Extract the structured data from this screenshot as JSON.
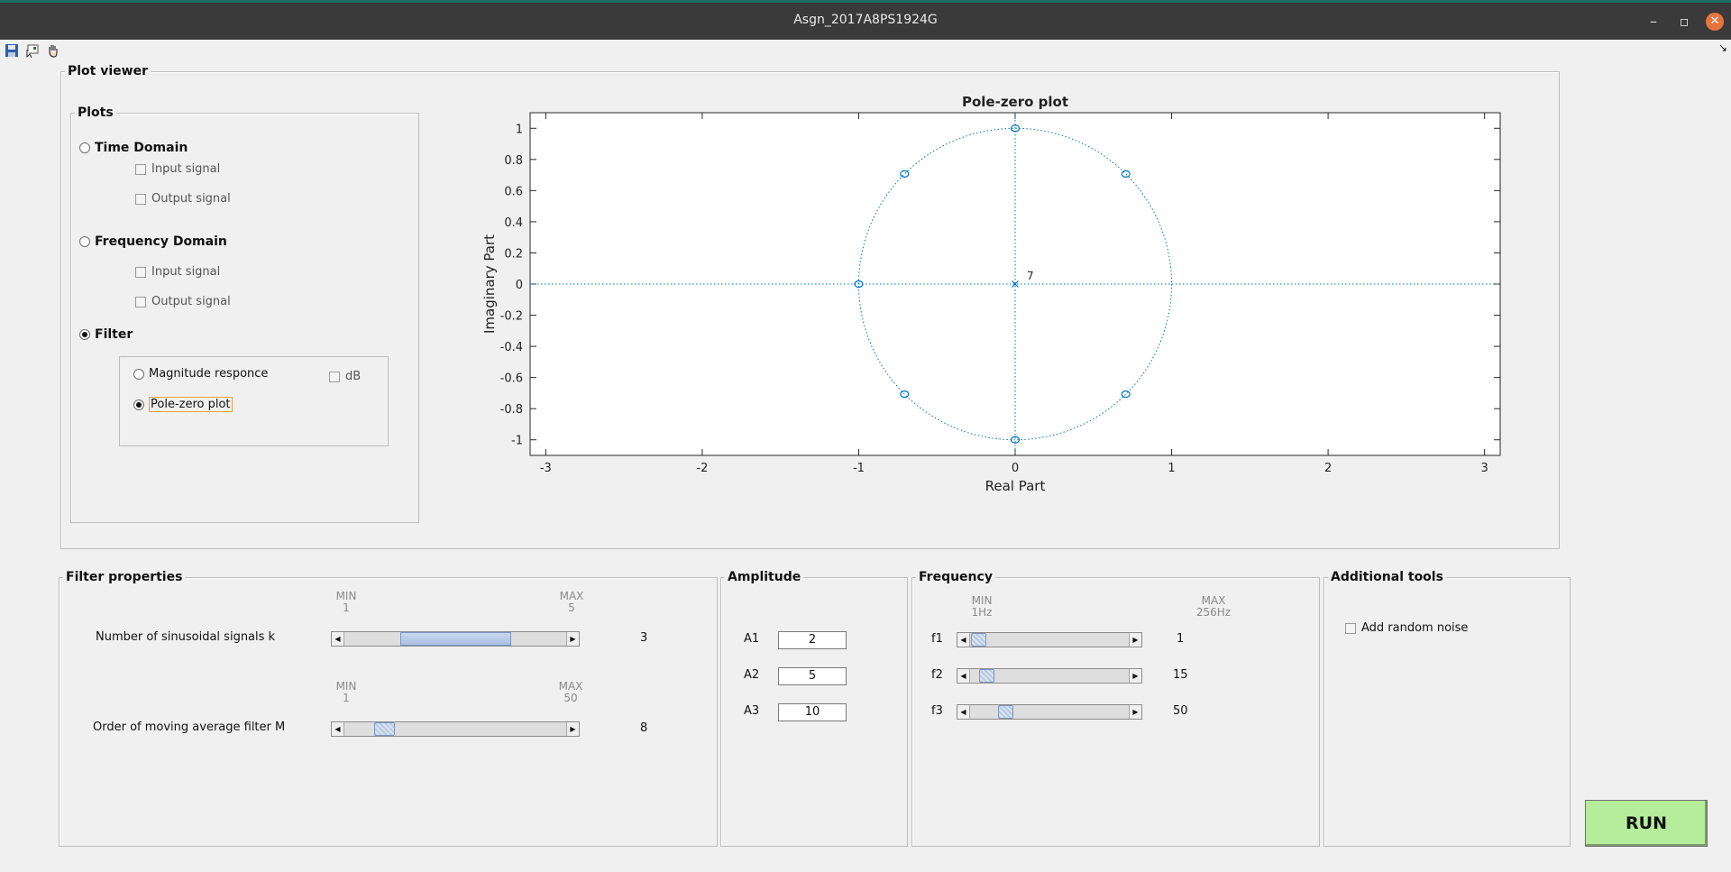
{
  "window": {
    "title": "Asgn_2017A8PS1924G",
    "minimize": "–",
    "maximize": "▫",
    "close": "✕",
    "collapse": "↘"
  },
  "plot_viewer": {
    "title": "Plot viewer",
    "plots_group": {
      "title": "Plots",
      "time_domain": "Time Domain",
      "freq_domain": "Frequency Domain",
      "filter": "Filter",
      "input_signal": "Input signal",
      "output_signal": "Output signal",
      "selected": "Filter"
    },
    "filter_options": {
      "magnitude": "Magnitude responce",
      "db": "dB",
      "polezero": "Pole-zero plot",
      "selected": "Pole-zero plot"
    }
  },
  "chart_data": {
    "type": "scatter",
    "title": "Pole-zero plot",
    "xlabel": "Real Part",
    "ylabel": "Imaginary Part",
    "xlim": [
      -3.1,
      3.1
    ],
    "ylim": [
      -1.1,
      1.1
    ],
    "x_ticks": [
      -3,
      -2,
      -1,
      0,
      1,
      2,
      3
    ],
    "y_ticks": [
      1,
      0.8,
      0.6,
      0.4,
      0.2,
      0,
      -0.2,
      -0.4,
      -0.6,
      -0.8,
      -1
    ],
    "x_tick_labels": [
      "-3",
      "-2",
      "-1",
      "0",
      "1",
      "2",
      "3"
    ],
    "y_tick_labels": [
      "1",
      "0.8",
      "0.6",
      "0.4",
      "0.2",
      "0",
      "-0.2",
      "-0.4",
      "-0.6",
      "-0.8",
      "-1"
    ],
    "zeros": [
      {
        "x": 0,
        "y": 1
      },
      {
        "x": 0.707,
        "y": 0.707
      },
      {
        "x": -0.707,
        "y": 0.707
      },
      {
        "x": -1,
        "y": 0
      },
      {
        "x": -0.707,
        "y": -0.707
      },
      {
        "x": 0.707,
        "y": -0.707
      },
      {
        "x": 0,
        "y": -1
      }
    ],
    "poles": [
      {
        "x": 0,
        "y": 0,
        "multiplicity": "7"
      }
    ],
    "unit_circle": true,
    "color": "#0072bd"
  },
  "filter_properties": {
    "title": "Filter properties",
    "min_label": "MIN",
    "max_label": "MAX",
    "k": {
      "label": "Number of sinusoidal signals k",
      "min": "1",
      "max": "5",
      "value": "3",
      "fraction": 0.5
    },
    "m": {
      "label": "Order of moving average filter M",
      "min": "1",
      "max": "50",
      "value": "8",
      "fraction": 0.143
    }
  },
  "amplitude": {
    "title": "Amplitude",
    "fields": [
      {
        "label": "A1",
        "value": "2"
      },
      {
        "label": "A2",
        "value": "5"
      },
      {
        "label": "A3",
        "value": "10"
      }
    ]
  },
  "frequency": {
    "title": "Frequency",
    "min_label": "MIN",
    "max_label": "MAX",
    "min_value": "1Hz",
    "max_value": "256Hz",
    "sliders": [
      {
        "label": "f1",
        "value": "1",
        "fraction": 0.0
      },
      {
        "label": "f2",
        "value": "15",
        "fraction": 0.055
      },
      {
        "label": "f3",
        "value": "50",
        "fraction": 0.192
      }
    ]
  },
  "additional_tools": {
    "title": "Additional tools",
    "noise": "Add random noise"
  },
  "run_button": "RUN",
  "arrows": {
    "left": "◀",
    "right": "▶"
  }
}
